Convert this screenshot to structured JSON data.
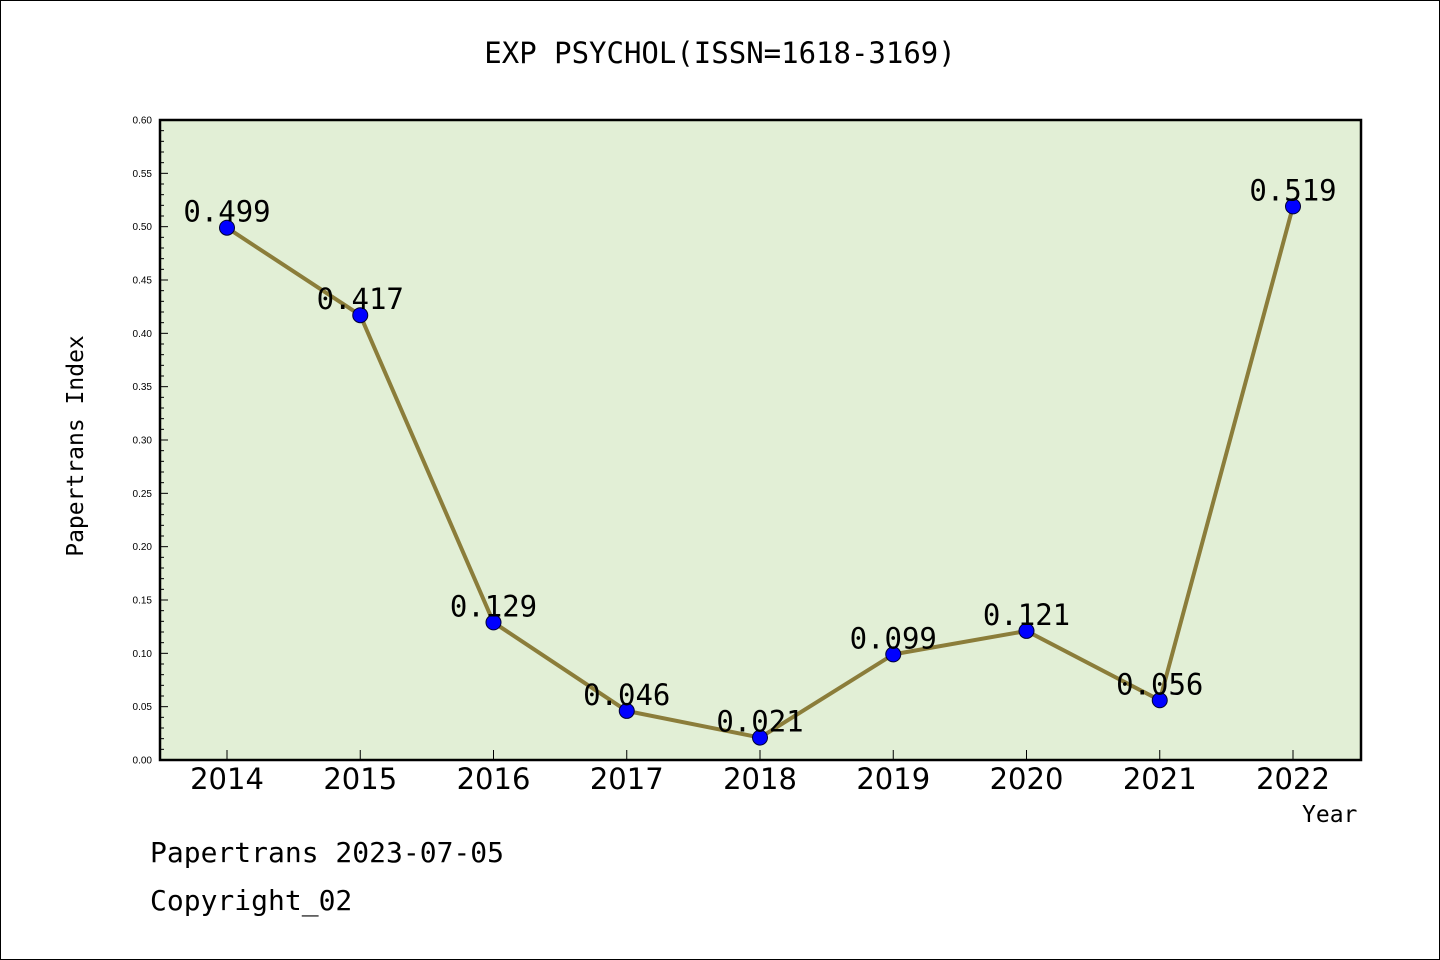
{
  "chart_data": {
    "type": "line",
    "title": "EXP PSYCHOL(ISSN=1618-3169)",
    "xlabel": "Year",
    "ylabel": "Papertrans Index",
    "categories": [
      "2014",
      "2015",
      "2016",
      "2017",
      "2018",
      "2019",
      "2020",
      "2021",
      "2022"
    ],
    "values": [
      0.499,
      0.417,
      0.129,
      0.046,
      0.021,
      0.099,
      0.121,
      0.056,
      0.519
    ],
    "data_labels": [
      "0.499",
      "0.417",
      "0.129",
      "0.046",
      "0.021",
      "0.099",
      "0.121",
      "0.056",
      "0.519"
    ],
    "ylim": [
      0,
      0.6
    ],
    "yticks": [
      "0.00",
      "0.05",
      "0.10",
      "0.15",
      "0.20",
      "0.25",
      "0.30",
      "0.35",
      "0.40",
      "0.45",
      "0.50",
      "0.55",
      "0.60"
    ],
    "grid": false,
    "line_color": "#8b7d3a",
    "marker_color": "#0000ff",
    "plot_background": "#e2efd6"
  },
  "footer": {
    "line1": "Papertrans 2023-07-05",
    "line2": "Copyright_02"
  }
}
